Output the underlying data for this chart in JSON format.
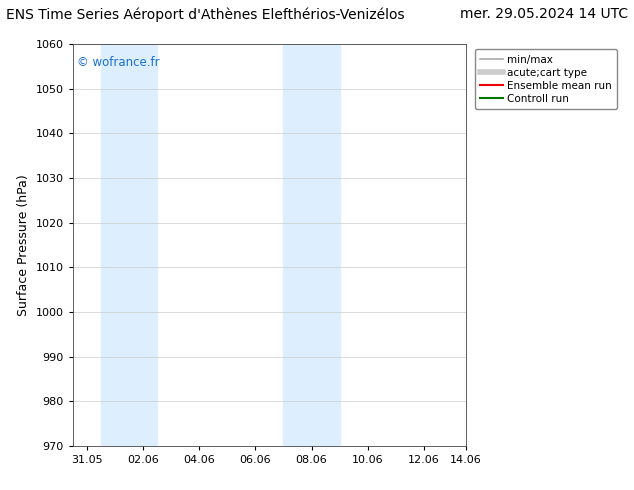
{
  "title_left": "ENS Time Series Aéroport d'Athènes Elefthérios-Venizélos",
  "title_right": "mer. 29.05.2024 14 UTC",
  "ylabel": "Surface Pressure (hPa)",
  "ylim": [
    970,
    1060
  ],
  "yticks": [
    970,
    980,
    990,
    1000,
    1010,
    1020,
    1030,
    1040,
    1050,
    1060
  ],
  "xlim_days": 14.0,
  "xtick_positions": [
    0.5,
    2.5,
    4.5,
    6.5,
    8.5,
    10.5,
    12.5,
    14.0
  ],
  "xtick_labels": [
    "31.05",
    "02.06",
    "04.06",
    "06.06",
    "08.06",
    "10.06",
    "12.06",
    "14.06"
  ],
  "shaded_bands": [
    {
      "xmin": 1.0,
      "xmax": 3.0
    },
    {
      "xmin": 7.5,
      "xmax": 9.5
    }
  ],
  "shade_color": "#ddeeff",
  "watermark_text": "© wofrance.fr",
  "watermark_color": "#1a6fd4",
  "legend_entries": [
    {
      "label": "min/max",
      "color": "#aaaaaa",
      "lw": 1.2
    },
    {
      "label": "acute;cart type",
      "color": "#cccccc",
      "lw": 4
    },
    {
      "label": "Ensemble mean run",
      "color": "#ee0000",
      "lw": 1.5
    },
    {
      "label": "Controll run",
      "color": "#007700",
      "lw": 1.5
    }
  ],
  "background_color": "#ffffff",
  "title_fontsize": 10,
  "tick_fontsize": 8,
  "label_fontsize": 9
}
